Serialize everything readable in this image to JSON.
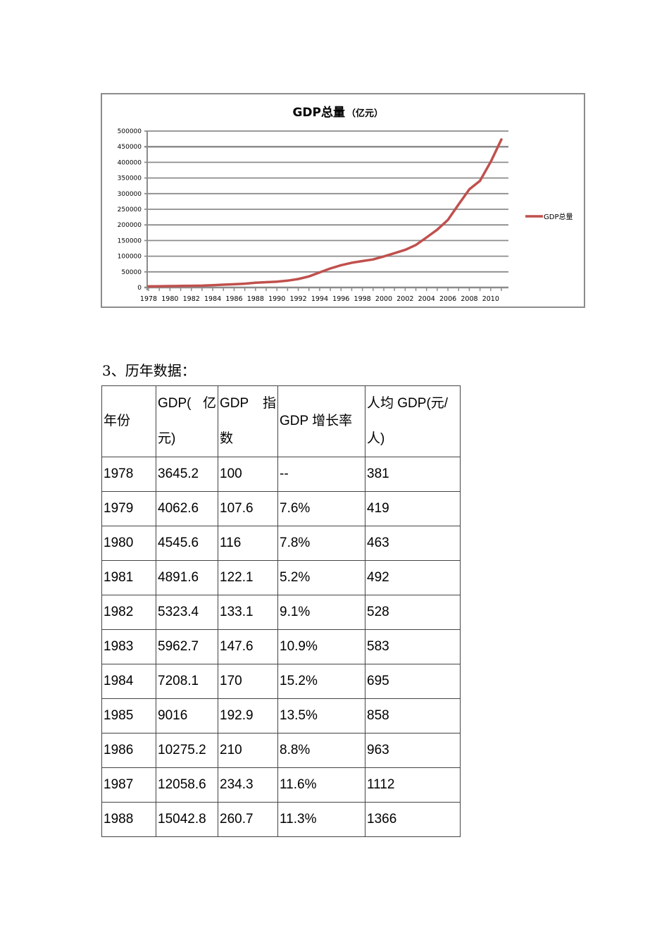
{
  "chart": {
    "title_main": "GDP总量",
    "title_unit": "（亿元）",
    "legend_label": "GDP总量",
    "line_color": "#c0504d",
    "grid_color": "#8c8c8c"
  },
  "chart_data": {
    "type": "line",
    "title": "GDP总量（亿元）",
    "xlabel": "",
    "ylabel": "",
    "ylim": [
      0,
      500000
    ],
    "yticks": [
      0,
      50000,
      100000,
      150000,
      200000,
      250000,
      300000,
      350000,
      400000,
      450000,
      500000
    ],
    "xtick_labels": [
      "1978",
      "1980",
      "1982",
      "1984",
      "1986",
      "1988",
      "1990",
      "1992",
      "1994",
      "1996",
      "1998",
      "2000",
      "2002",
      "2004",
      "2006",
      "2008",
      "2010"
    ],
    "grid": true,
    "legend_position": "right",
    "series": [
      {
        "name": "GDP总量",
        "x": [
          1978,
          1979,
          1980,
          1981,
          1982,
          1983,
          1984,
          1985,
          1986,
          1987,
          1988,
          1989,
          1990,
          1991,
          1992,
          1993,
          1994,
          1995,
          1996,
          1997,
          1998,
          1999,
          2000,
          2001,
          2002,
          2003,
          2004,
          2005,
          2006,
          2007,
          2008,
          2009,
          2010,
          2011
        ],
        "values": [
          3645,
          4063,
          4546,
          4892,
          5323,
          5963,
          7208,
          9016,
          10275,
          12059,
          15043,
          16992,
          18668,
          21781,
          26923,
          35334,
          48198,
          60794,
          71177,
          78973,
          84402,
          89677,
          99215,
          109655,
          120333,
          135823,
          159878,
          184937,
          216314,
          265810,
          314045,
          340903,
          401513,
          473104
        ]
      }
    ]
  },
  "document": {
    "section_heading": "3、历年数据："
  },
  "table": {
    "headers": [
      {
        "line1_left": "年份",
        "line1_right": "",
        "line2": ""
      },
      {
        "line1_left": "GDP(",
        "line1_right": "亿",
        "line2": "元)"
      },
      {
        "line1_left": "GDP",
        "line1_right": "指",
        "line2": "数"
      },
      {
        "line1_left": "GDP 增长率",
        "line1_right": "",
        "line2": ""
      },
      {
        "line1_left": "人均 GDP(元/",
        "line1_right": "",
        "line2": "人)"
      }
    ],
    "rows": [
      [
        "1978",
        "3645.2",
        "100",
        "--",
        "381"
      ],
      [
        "1979",
        "4062.6",
        "107.6",
        "7.6%",
        "419"
      ],
      [
        "1980",
        "4545.6",
        "116",
        "7.8%",
        "463"
      ],
      [
        "1981",
        "4891.6",
        "122.1",
        "5.2%",
        "492"
      ],
      [
        "1982",
        "5323.4",
        "133.1",
        "9.1%",
        "528"
      ],
      [
        "1983",
        "5962.7",
        "147.6",
        "10.9%",
        "583"
      ],
      [
        "1984",
        "7208.1",
        "170",
        "15.2%",
        "695"
      ],
      [
        "1985",
        "9016",
        "192.9",
        "13.5%",
        "858"
      ],
      [
        "1986",
        "10275.2",
        "210",
        "8.8%",
        "963"
      ],
      [
        "1987",
        "12058.6",
        "234.3",
        "11.6%",
        "1112"
      ],
      [
        "1988",
        "15042.8",
        "260.7",
        "11.3%",
        "1366"
      ]
    ]
  }
}
